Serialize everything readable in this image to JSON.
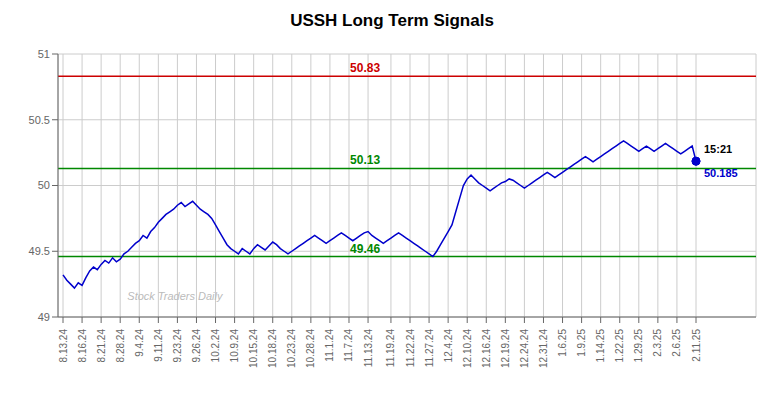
{
  "chart_data": {
    "type": "line",
    "title": "USSH Long Term Signals",
    "categories": [
      "8.13.24",
      null,
      null,
      null,
      null,
      "8.16.24",
      null,
      null,
      null,
      null,
      "8.21.24",
      null,
      null,
      null,
      null,
      "8.28.24",
      null,
      null,
      null,
      null,
      "9.4.24",
      null,
      null,
      null,
      null,
      "9.11.24",
      null,
      null,
      null,
      null,
      "9.23.24",
      null,
      null,
      null,
      null,
      "9.26.24",
      null,
      null,
      null,
      null,
      "10.2.24",
      null,
      null,
      null,
      null,
      "10.9.24",
      null,
      null,
      null,
      null,
      "10.15.24",
      null,
      null,
      null,
      null,
      "10.18.24",
      null,
      null,
      null,
      null,
      "10.23.24",
      null,
      null,
      null,
      null,
      "10.28.24",
      null,
      null,
      null,
      null,
      "11.1.24",
      null,
      null,
      null,
      null,
      "11.7.24",
      null,
      null,
      null,
      null,
      "11.13.24",
      null,
      null,
      null,
      null,
      null,
      "11.19.24",
      null,
      null,
      null,
      null,
      "11.22.24",
      null,
      null,
      null,
      null,
      "11.27.24",
      null,
      null,
      null,
      null,
      "12.4.24",
      null,
      null,
      null,
      null,
      "12.10.24",
      null,
      null,
      null,
      null,
      "12.16.24",
      null,
      null,
      null,
      null,
      "12.19.24",
      null,
      null,
      null,
      null,
      "12.24.24",
      null,
      null,
      null,
      null,
      "12.31.24",
      null,
      null,
      null,
      null,
      "1.6.25",
      null,
      null,
      null,
      null,
      "1.9.25",
      null,
      null,
      null,
      null,
      "1.14.25",
      null,
      null,
      null,
      null,
      "1.22.25",
      null,
      null,
      null,
      null,
      "1.29.25",
      null,
      null,
      null,
      null,
      "2.3.25",
      null,
      null,
      null,
      null,
      "2.6.25",
      null,
      null,
      null,
      null,
      "2.11.25"
    ],
    "values": [
      49.32,
      49.28,
      49.25,
      49.22,
      49.26,
      49.24,
      49.3,
      49.35,
      49.38,
      49.36,
      49.4,
      49.43,
      49.41,
      49.45,
      49.42,
      49.44,
      49.48,
      49.5,
      49.53,
      49.56,
      49.58,
      49.62,
      49.6,
      49.65,
      49.68,
      49.72,
      49.75,
      49.78,
      49.8,
      49.82,
      49.85,
      49.87,
      49.84,
      49.86,
      49.88,
      49.85,
      49.82,
      49.8,
      49.78,
      49.75,
      49.7,
      49.65,
      49.6,
      49.55,
      49.52,
      49.5,
      49.48,
      49.52,
      49.5,
      49.48,
      49.52,
      49.55,
      49.53,
      49.51,
      49.54,
      49.57,
      49.55,
      49.52,
      49.5,
      49.48,
      49.5,
      49.52,
      49.54,
      49.56,
      49.58,
      49.6,
      49.62,
      49.6,
      49.58,
      49.56,
      49.58,
      49.6,
      49.62,
      49.64,
      49.62,
      49.6,
      49.58,
      49.6,
      49.62,
      49.64,
      49.65,
      49.62,
      49.6,
      49.58,
      49.56,
      49.58,
      49.6,
      49.62,
      49.64,
      49.62,
      49.6,
      49.58,
      49.56,
      49.54,
      49.52,
      49.5,
      49.48,
      49.46,
      49.5,
      49.55,
      49.6,
      49.65,
      49.7,
      49.8,
      49.9,
      50.0,
      50.05,
      50.08,
      50.05,
      50.02,
      50.0,
      49.98,
      49.96,
      49.98,
      50.0,
      50.02,
      50.03,
      50.05,
      50.04,
      50.02,
      50.0,
      49.98,
      50.0,
      50.02,
      50.04,
      50.06,
      50.08,
      50.1,
      50.08,
      50.06,
      50.08,
      50.1,
      50.12,
      50.14,
      50.16,
      50.18,
      50.2,
      50.22,
      50.2,
      50.18,
      50.2,
      50.22,
      50.24,
      50.26,
      50.28,
      50.3,
      50.32,
      50.34,
      50.32,
      50.3,
      50.28,
      50.26,
      50.28,
      50.3,
      50.28,
      50.26,
      50.28,
      50.3,
      50.32,
      50.3,
      50.28,
      50.26,
      50.24,
      50.26,
      50.28,
      50.3,
      50.185
    ],
    "color": "#0000cc",
    "ylim": [
      49.0,
      51.0
    ],
    "yticks": [
      49.0,
      49.5,
      50.0,
      50.5,
      51.0
    ],
    "grid": true,
    "reference_lines": [
      {
        "value": 50.83,
        "color": "#cc0000"
      },
      {
        "value": 50.13,
        "color": "#008800"
      },
      {
        "value": 49.46,
        "color": "#008800"
      }
    ],
    "annotations": [
      {
        "text": "15:21",
        "x": 166,
        "y": 50.185,
        "color": "#000000"
      },
      {
        "text": "50.185",
        "x": 166,
        "y": 50.185,
        "color": "#0000cc"
      },
      {
        "text": "Stock Traders Daily",
        "color": "#bbbbbb"
      }
    ]
  }
}
